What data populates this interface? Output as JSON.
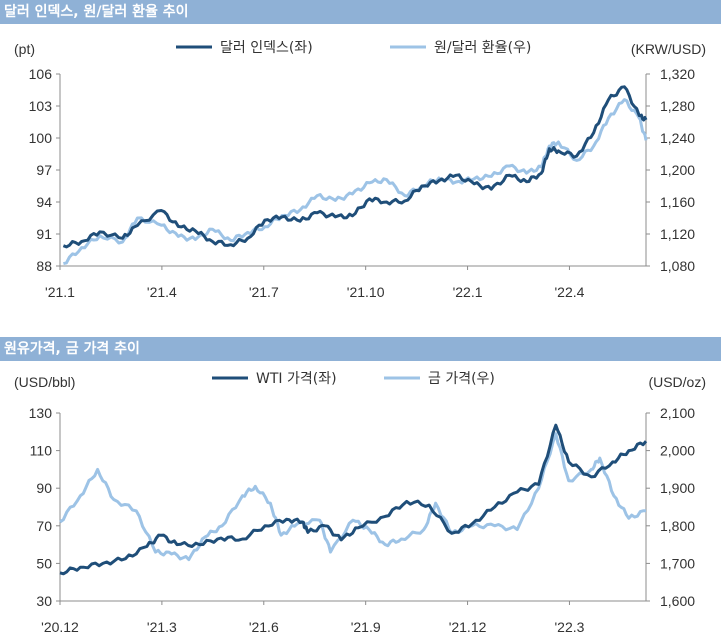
{
  "chart_data": [
    {
      "type": "line",
      "title": "달러 인덱스, 원/달러 환율 추이",
      "left_unit": "(pt)",
      "right_unit": "(KRW/USD)",
      "x_labels": [
        "'21.1",
        "'21.4",
        "'21.7",
        "'21.10",
        "'22.1",
        "'22.4"
      ],
      "x_start": "2021-01-01",
      "x_end": "2022-05-31",
      "left_axis": {
        "min": 88,
        "max": 106,
        "ticks": [
          "88",
          "91",
          "94",
          "97",
          "100",
          "103",
          "106"
        ]
      },
      "right_axis": {
        "min": 1080,
        "max": 1320,
        "ticks": [
          "1,080",
          "1,120",
          "1,160",
          "1,200",
          "1,240",
          "1,280",
          "1,320"
        ]
      },
      "legend_placement": "top-center",
      "series": [
        {
          "name": "달러 인덱스(좌)",
          "axis": "left",
          "color": "#1f4e79",
          "points": [
            [
              "2021-01-04",
              89.9
            ],
            [
              "2021-01-20",
              90.3
            ],
            [
              "2021-02-05",
              91.2
            ],
            [
              "2021-02-25",
              90.6
            ],
            [
              "2021-03-10",
              91.8
            ],
            [
              "2021-03-31",
              93.2
            ],
            [
              "2021-04-15",
              91.7
            ],
            [
              "2021-04-30",
              91.3
            ],
            [
              "2021-05-15",
              90.3
            ],
            [
              "2021-05-31",
              90.0
            ],
            [
              "2021-06-15",
              90.6
            ],
            [
              "2021-06-30",
              92.3
            ],
            [
              "2021-07-15",
              92.6
            ],
            [
              "2021-07-31",
              92.2
            ],
            [
              "2021-08-15",
              93.0
            ],
            [
              "2021-08-31",
              92.6
            ],
            [
              "2021-09-15",
              92.7
            ],
            [
              "2021-09-30",
              94.3
            ],
            [
              "2021-10-15",
              94.0
            ],
            [
              "2021-10-31",
              94.1
            ],
            [
              "2021-11-15",
              95.5
            ],
            [
              "2021-11-30",
              96.0
            ],
            [
              "2021-12-15",
              96.5
            ],
            [
              "2021-12-31",
              95.7
            ],
            [
              "2022-01-15",
              95.2
            ],
            [
              "2022-01-31",
              96.5
            ],
            [
              "2022-02-15",
              95.9
            ],
            [
              "2022-02-28",
              96.7
            ],
            [
              "2022-03-07",
              99.0
            ],
            [
              "2022-03-15",
              98.8
            ],
            [
              "2022-03-31",
              98.3
            ],
            [
              "2022-04-15",
              100.5
            ],
            [
              "2022-04-28",
              103.6
            ],
            [
              "2022-05-12",
              104.8
            ],
            [
              "2022-05-25",
              102.1
            ],
            [
              "2022-05-31",
              101.7
            ]
          ]
        },
        {
          "name": "원/달러 환율(우)",
          "axis": "right",
          "color": "#9dc3e6",
          "points": [
            [
              "2021-01-04",
              1083
            ],
            [
              "2021-01-20",
              1103
            ],
            [
              "2021-02-05",
              1118
            ],
            [
              "2021-02-25",
              1110
            ],
            [
              "2021-03-10",
              1140
            ],
            [
              "2021-03-31",
              1131
            ],
            [
              "2021-04-15",
              1117
            ],
            [
              "2021-04-30",
              1113
            ],
            [
              "2021-05-15",
              1126
            ],
            [
              "2021-05-31",
              1112
            ],
            [
              "2021-06-15",
              1122
            ],
            [
              "2021-06-30",
              1129
            ],
            [
              "2021-07-15",
              1143
            ],
            [
              "2021-07-31",
              1150
            ],
            [
              "2021-08-15",
              1168
            ],
            [
              "2021-08-31",
              1162
            ],
            [
              "2021-09-15",
              1170
            ],
            [
              "2021-09-30",
              1184
            ],
            [
              "2021-10-15",
              1188
            ],
            [
              "2021-10-31",
              1168
            ],
            [
              "2021-11-15",
              1180
            ],
            [
              "2021-11-30",
              1190
            ],
            [
              "2021-12-15",
              1185
            ],
            [
              "2021-12-31",
              1189
            ],
            [
              "2022-01-15",
              1192
            ],
            [
              "2022-01-31",
              1205
            ],
            [
              "2022-02-15",
              1196
            ],
            [
              "2022-02-28",
              1204
            ],
            [
              "2022-03-07",
              1230
            ],
            [
              "2022-03-15",
              1235
            ],
            [
              "2022-03-31",
              1212
            ],
            [
              "2022-04-15",
              1230
            ],
            [
              "2022-04-28",
              1265
            ],
            [
              "2022-05-12",
              1288
            ],
            [
              "2022-05-25",
              1265
            ],
            [
              "2022-05-31",
              1237
            ]
          ]
        }
      ]
    },
    {
      "type": "line",
      "title": "원유가격, 금 가격 추이",
      "left_unit": "(USD/bbl)",
      "right_unit": "(USD/oz)",
      "x_labels": [
        "'20.12",
        "'21.3",
        "'21.6",
        "'21.9",
        "'21.12",
        "'22.3"
      ],
      "x_start": "2020-12-01",
      "x_end": "2022-05-31",
      "left_axis": {
        "min": 30,
        "max": 130,
        "ticks": [
          "30",
          "50",
          "70",
          "90",
          "110",
          "130"
        ]
      },
      "right_axis": {
        "min": 1600,
        "max": 2100,
        "ticks": [
          "1,600",
          "1,700",
          "1,800",
          "1,900",
          "2,000",
          "2,100"
        ]
      },
      "legend_placement": "top-center",
      "series": [
        {
          "name": "WTI 가격(좌)",
          "axis": "left",
          "color": "#1f4e79",
          "points": [
            [
              "2020-12-01",
              45.0
            ],
            [
              "2020-12-20",
              48.0
            ],
            [
              "2021-01-10",
              50.0
            ],
            [
              "2021-01-31",
              52.5
            ],
            [
              "2021-02-20",
              59.0
            ],
            [
              "2021-03-05",
              65.0
            ],
            [
              "2021-03-20",
              60.0
            ],
            [
              "2021-04-10",
              60.0
            ],
            [
              "2021-04-30",
              63.5
            ],
            [
              "2021-05-20",
              63.0
            ],
            [
              "2021-06-10",
              70.0
            ],
            [
              "2021-06-30",
              73.5
            ],
            [
              "2021-07-15",
              72.0
            ],
            [
              "2021-07-20",
              66.5
            ],
            [
              "2021-08-05",
              70.0
            ],
            [
              "2021-08-20",
              62.5
            ],
            [
              "2021-09-05",
              69.0
            ],
            [
              "2021-09-30",
              75.0
            ],
            [
              "2021-10-20",
              83.0
            ],
            [
              "2021-11-10",
              81.0
            ],
            [
              "2021-12-01",
              66.0
            ],
            [
              "2021-12-20",
              71.0
            ],
            [
              "2022-01-10",
              80.0
            ],
            [
              "2022-01-31",
              88.0
            ],
            [
              "2022-02-20",
              92.0
            ],
            [
              "2022-03-08",
              123.5
            ],
            [
              "2022-03-20",
              104.0
            ],
            [
              "2022-04-10",
              96.0
            ],
            [
              "2022-04-30",
              104.0
            ],
            [
              "2022-05-15",
              110.0
            ],
            [
              "2022-05-31",
              115.0
            ]
          ]
        },
        {
          "name": "금 가격(우)",
          "axis": "right",
          "color": "#9dc3e6",
          "points": [
            [
              "2020-12-01",
              1810
            ],
            [
              "2020-12-20",
              1880
            ],
            [
              "2021-01-05",
              1950
            ],
            [
              "2021-01-20",
              1870
            ],
            [
              "2021-02-10",
              1840
            ],
            [
              "2021-02-28",
              1730
            ],
            [
              "2021-03-15",
              1725
            ],
            [
              "2021-03-31",
              1710
            ],
            [
              "2021-04-15",
              1770
            ],
            [
              "2021-05-01",
              1800
            ],
            [
              "2021-05-20",
              1880
            ],
            [
              "2021-06-01",
              1905
            ],
            [
              "2021-06-15",
              1860
            ],
            [
              "2021-06-25",
              1775
            ],
            [
              "2021-07-10",
              1805
            ],
            [
              "2021-07-31",
              1815
            ],
            [
              "2021-08-10",
              1730
            ],
            [
              "2021-08-31",
              1815
            ],
            [
              "2021-09-15",
              1790
            ],
            [
              "2021-09-30",
              1750
            ],
            [
              "2021-10-15",
              1765
            ],
            [
              "2021-11-05",
              1790
            ],
            [
              "2021-11-16",
              1860
            ],
            [
              "2021-12-01",
              1780
            ],
            [
              "2021-12-20",
              1800
            ],
            [
              "2022-01-10",
              1800
            ],
            [
              "2022-01-31",
              1790
            ],
            [
              "2022-02-20",
              1900
            ],
            [
              "2022-03-08",
              2045
            ],
            [
              "2022-03-20",
              1920
            ],
            [
              "2022-04-10",
              1950
            ],
            [
              "2022-04-18",
              1980
            ],
            [
              "2022-05-01",
              1880
            ],
            [
              "2022-05-15",
              1820
            ],
            [
              "2022-05-31",
              1840
            ]
          ]
        }
      ]
    }
  ]
}
